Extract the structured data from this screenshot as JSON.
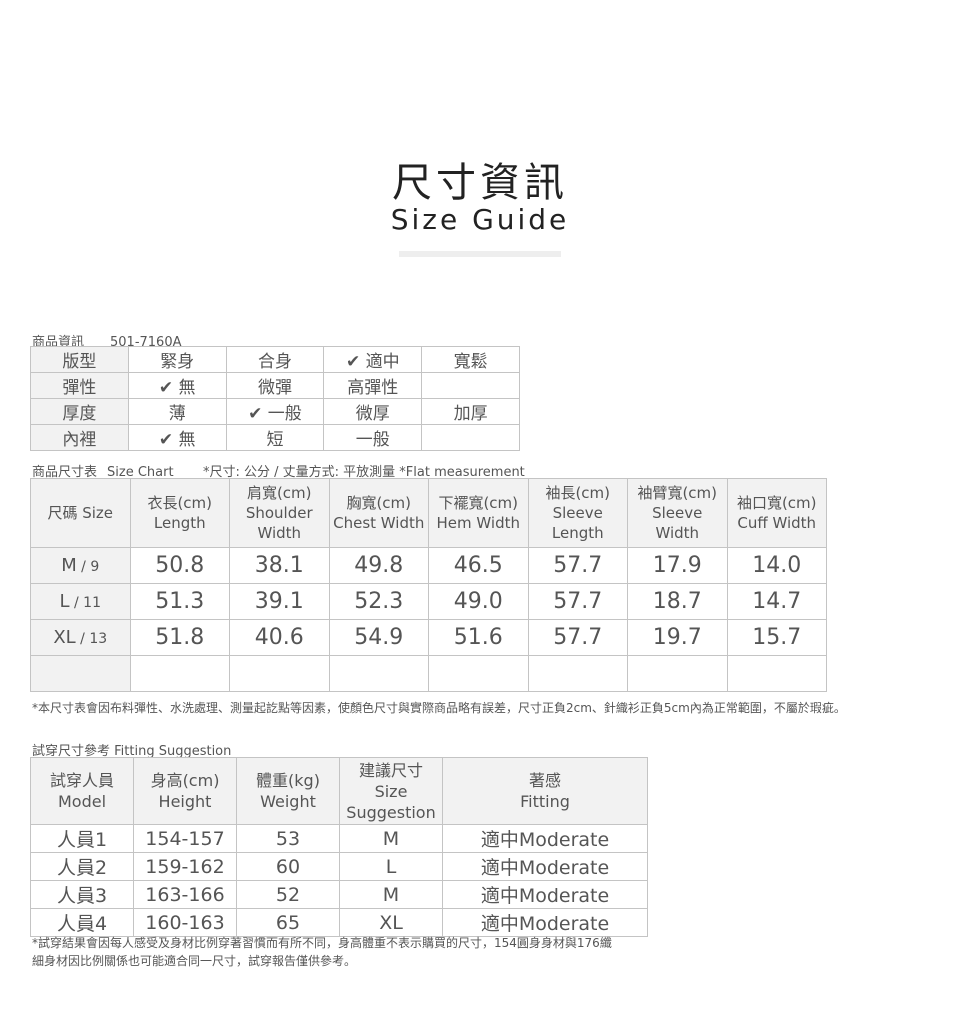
{
  "header": {
    "title": "尺寸資訊",
    "subtitle": "Size Guide"
  },
  "product_info": {
    "label": "商品資訊",
    "code": "501-7160A",
    "rows": [
      {
        "name": "版型",
        "options": [
          "緊身",
          "合身",
          "✔ 適中",
          "寬鬆"
        ]
      },
      {
        "name": "彈性",
        "options": [
          "✔ 無",
          "微彈",
          "高彈性",
          ""
        ]
      },
      {
        "name": "厚度",
        "options": [
          "薄",
          "✔ 一般",
          "微厚",
          "加厚"
        ]
      },
      {
        "name": "內裡",
        "options": [
          "✔ 無",
          "短",
          "一般",
          ""
        ]
      }
    ]
  },
  "size_chart": {
    "label": "商品尺寸表",
    "label_en": "Size Chart",
    "unit_note": "*尺寸: 公分 / 丈量方式: 平放測量 *Flat measurement",
    "headers": [
      "尺碼 Size",
      "衣長(cm)\nLength",
      "肩寬(cm)\nShoulder\nWidth",
      "胸寬(cm)\nChest Width",
      "下襬寬(cm)\nHem Width",
      "袖長(cm)\nSleeve\nLength",
      "袖臂寬(cm)\nSleeve\nWidth",
      "袖口寬(cm)\nCuff Width"
    ],
    "rows": [
      {
        "size": "M",
        "num": "9",
        "values": [
          "50.8",
          "38.1",
          "49.8",
          "46.5",
          "57.7",
          "17.9",
          "14.0"
        ]
      },
      {
        "size": "L",
        "num": "11",
        "values": [
          "51.3",
          "39.1",
          "52.3",
          "49.0",
          "57.7",
          "18.7",
          "14.7"
        ]
      },
      {
        "size": "XL",
        "num": "13",
        "values": [
          "51.8",
          "40.6",
          "54.9",
          "51.6",
          "57.7",
          "19.7",
          "15.7"
        ]
      }
    ],
    "note": "*本尺寸表會因布料彈性、水洗處理、測量起訖點等因素，使顏色尺寸與實際商品略有誤差，尺寸正負2cm、針織衫正負5cm內為正常範圍，不屬於瑕疵。"
  },
  "fitting": {
    "label": "試穿尺寸參考 Fitting Suggestion",
    "headers": [
      "試穿人員\nModel",
      "身高(cm)\nHeight",
      "體重(kg)\nWeight",
      "建議尺寸\nSize\nSuggestion",
      "著感\nFitting"
    ],
    "rows": [
      [
        "人員1",
        "154-157",
        "53",
        "M",
        "適中Moderate"
      ],
      [
        "人員2",
        "159-162",
        "60",
        "L",
        "適中Moderate"
      ],
      [
        "人員3",
        "163-166",
        "52",
        "M",
        "適中Moderate"
      ],
      [
        "人員4",
        "160-163",
        "65",
        "XL",
        "適中Moderate"
      ]
    ],
    "note": "*試穿結果會因每人感受及身材比例穿著習慣而有所不同，身高體重不表示購買的尺寸，154圓身身材與176纖細身材因比例關係也可能適合同一尺寸，試穿報告僅供參考。"
  }
}
